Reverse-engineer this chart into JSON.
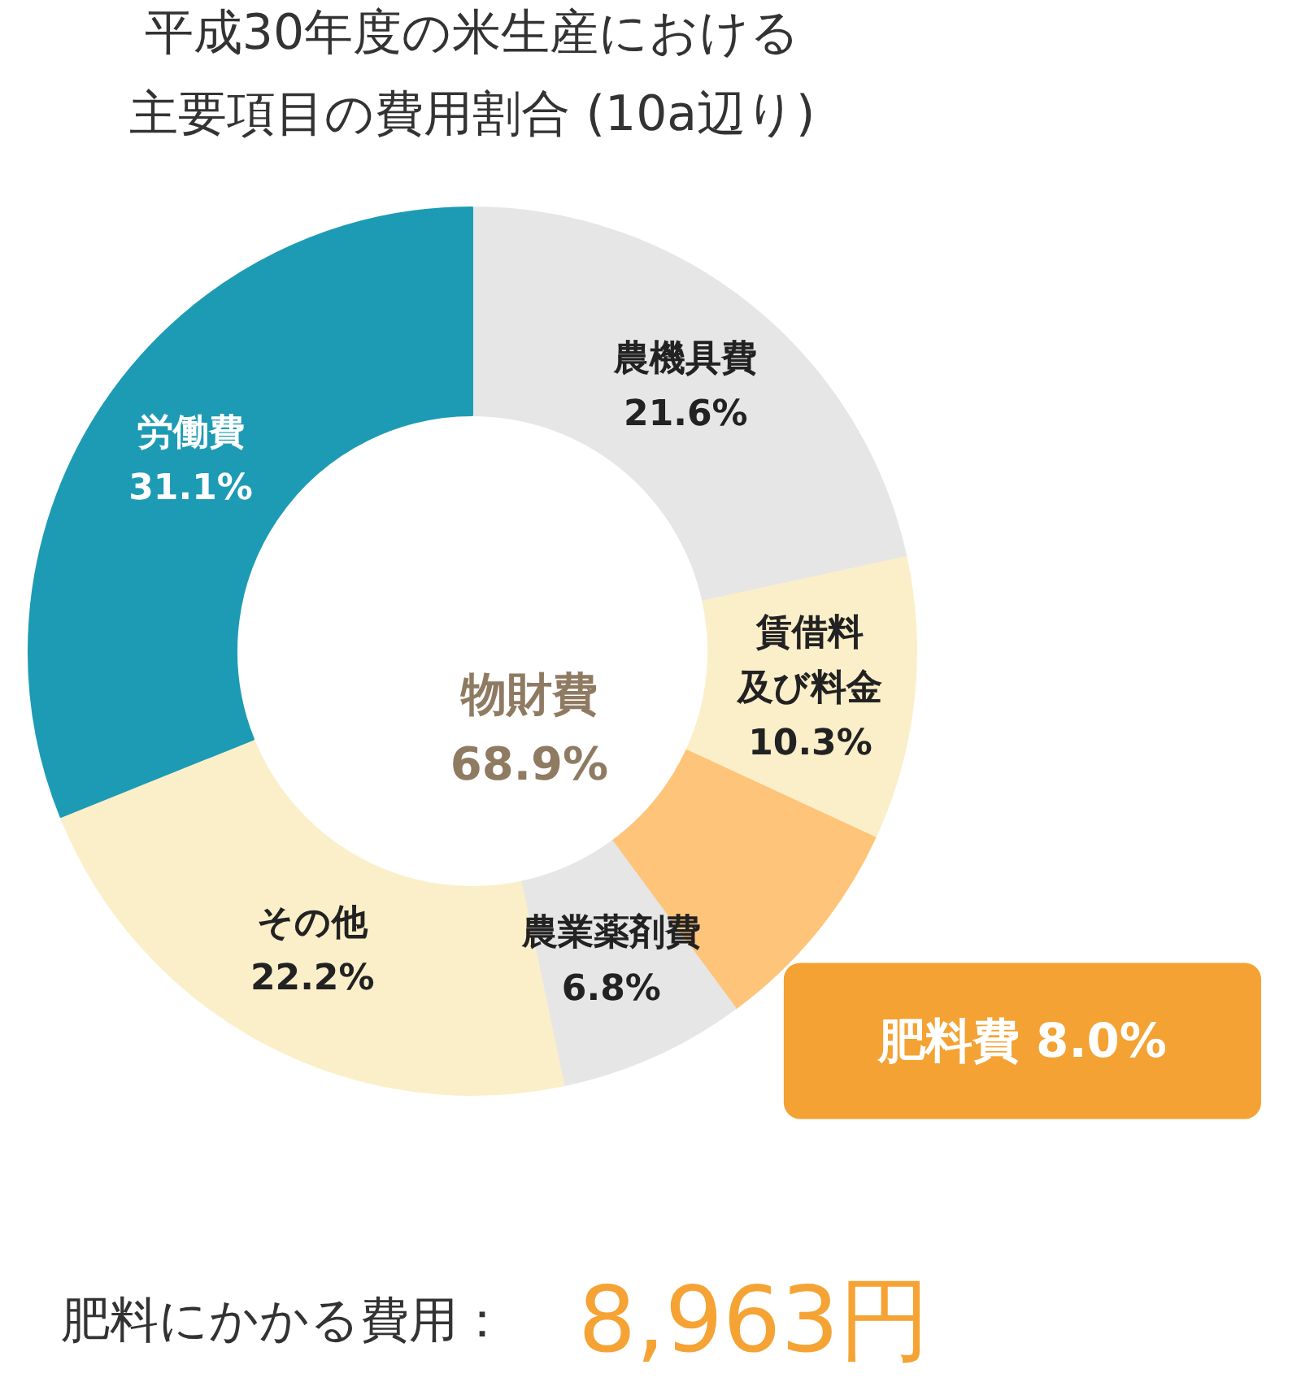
{
  "chart_data": {
    "type": "donut",
    "title": "平成30年度の米生産における主要項目の費用割合 (10a辺り)",
    "categories": [
      "農機具費",
      "賃借料及び料金",
      null,
      "農業薬剤費",
      "その他",
      "労働費"
    ],
    "values": [
      21.6,
      10.3,
      8.0,
      6.8,
      22.2,
      31.1
    ],
    "colors": [
      "#e6e6e6",
      "#fbefca",
      "#fec47a",
      "#e6e6e6",
      "#fbefca",
      "#1e9bb4"
    ],
    "value_labels": [
      "21.6%",
      "10.3%",
      null,
      "6.8%",
      "22.2%",
      "31.1%"
    ],
    "annotations": [
      {
        "text": "肥料費 8.0%"
      },
      "物財費 68.9%",
      "肥料にかかる費用：",
      "8,963円"
    ]
  }
}
